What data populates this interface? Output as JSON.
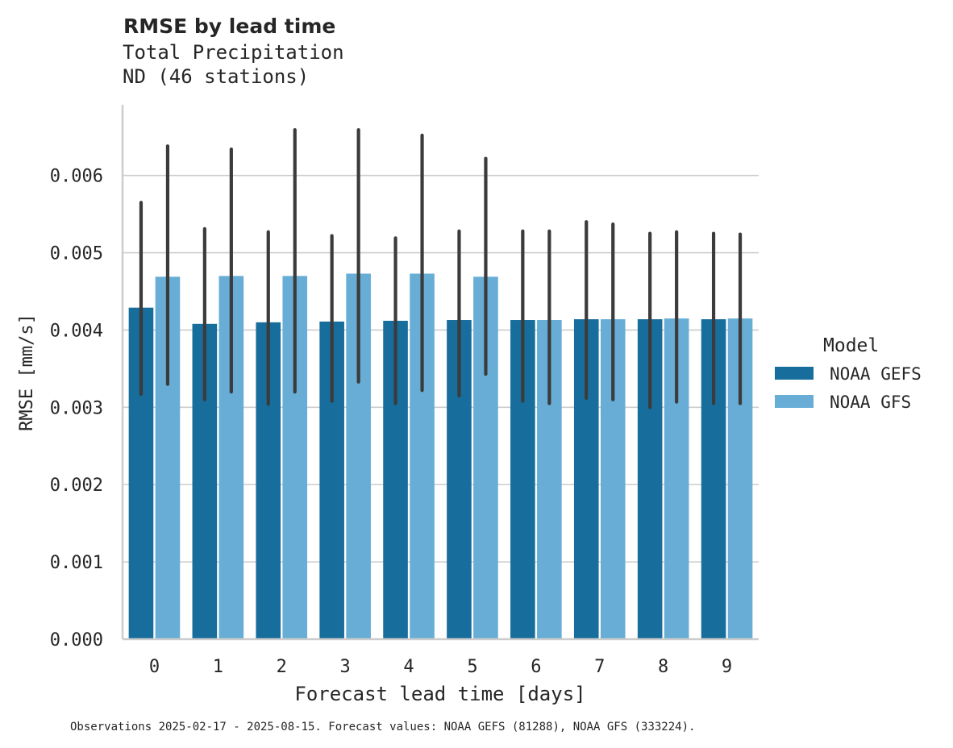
{
  "chart_data": {
    "type": "bar",
    "title": "RMSE by lead time",
    "subtitle_lines": [
      "Total Precipitation",
      "ND (46 stations)"
    ],
    "xlabel": "Forecast lead time [days]",
    "ylabel": "RMSE [mm/s]",
    "categories": [
      "0",
      "1",
      "2",
      "3",
      "4",
      "5",
      "6",
      "7",
      "8",
      "9"
    ],
    "ylim": [
      0,
      0.0069
    ],
    "yticks": [
      0.0,
      0.001,
      0.002,
      0.003,
      0.004,
      0.005,
      0.006
    ],
    "ytick_labels": [
      "0.000",
      "0.001",
      "0.002",
      "0.003",
      "0.004",
      "0.005",
      "0.006"
    ],
    "grid": "horizontal",
    "legend": {
      "title": "Model",
      "placement": "right"
    },
    "series": [
      {
        "name": "NOAA GEFS",
        "color": "#176d9c",
        "values": [
          0.00429,
          0.00408,
          0.0041,
          0.00411,
          0.00412,
          0.00413,
          0.00413,
          0.00414,
          0.00414,
          0.00414
        ],
        "ci_low": [
          0.00317,
          0.0031,
          0.00304,
          0.00308,
          0.00305,
          0.00315,
          0.00308,
          0.00312,
          0.003,
          0.00305
        ],
        "ci_high": [
          0.00565,
          0.00531,
          0.00527,
          0.00522,
          0.00519,
          0.00528,
          0.00528,
          0.0054,
          0.00525,
          0.00525
        ]
      },
      {
        "name": "NOAA GFS",
        "color": "#67add6",
        "values": [
          0.00469,
          0.0047,
          0.0047,
          0.00473,
          0.00473,
          0.00469,
          0.00413,
          0.00414,
          0.00415,
          0.00415
        ],
        "ci_low": [
          0.0033,
          0.0032,
          0.0032,
          0.00333,
          0.00322,
          0.00343,
          0.00305,
          0.0031,
          0.00307,
          0.00305
        ],
        "ci_high": [
          0.00638,
          0.00634,
          0.00659,
          0.00659,
          0.00652,
          0.00622,
          0.00528,
          0.00537,
          0.00527,
          0.00524
        ]
      }
    ],
    "errorbar_color": "#3b3b3b",
    "footnote": "Observations 2025-02-17 - 2025-08-15. Forecast values: NOAA GEFS (81288), NOAA GFS (333224)."
  }
}
